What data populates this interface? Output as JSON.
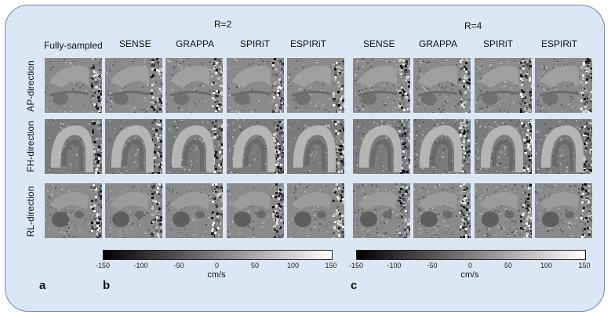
{
  "groups": [
    {
      "label": "R=2",
      "columns": [
        "SENSE",
        "GRAPPA",
        "SPIRiT",
        "ESPIRiT"
      ]
    },
    {
      "label": "R=4",
      "columns": [
        "SENSE",
        "GRAPPA",
        "SPIRiT",
        "ESPIRiT"
      ]
    }
  ],
  "reference_column": "Fully-sampled",
  "rows": [
    "AP-direction",
    "FH-direction",
    "RL-direction"
  ],
  "colorbar": {
    "ticks": [
      "-150",
      "-100",
      "-50",
      "0",
      "50",
      "100",
      "150"
    ],
    "unit": "cm/s",
    "colormap": [
      "#000000",
      "#ffffff"
    ],
    "range": [
      -150,
      150
    ]
  },
  "panel_labels": [
    "a",
    "b",
    "c"
  ],
  "colors": {
    "panel_bg": "#dbe7f4",
    "panel_border": "#6a89b3"
  }
}
